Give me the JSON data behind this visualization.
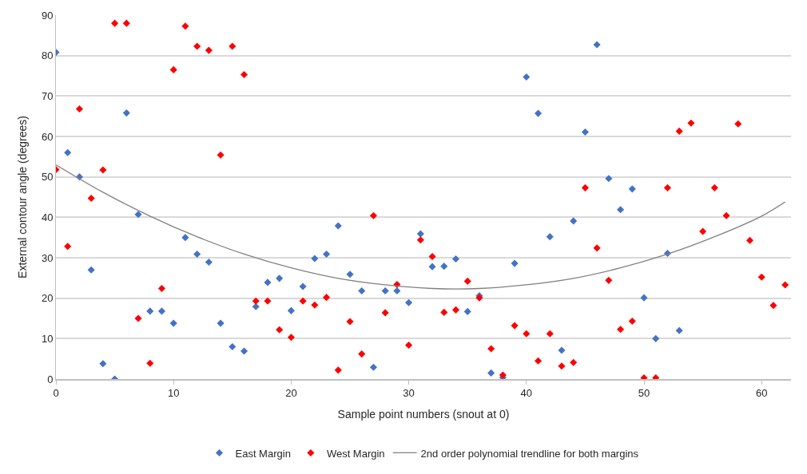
{
  "chart_data": {
    "type": "scatter",
    "xlabel": "Sample point numbers (snout at 0)",
    "ylabel": "External contour angle (degrees)",
    "xlim": [
      0,
      62.5
    ],
    "xticks": [
      0,
      10,
      20,
      30,
      40,
      50,
      60
    ],
    "ylim": [
      0,
      90
    ],
    "yticks": [
      0,
      10,
      20,
      30,
      40,
      50,
      60,
      70,
      80,
      90
    ],
    "grid": "y",
    "legend": "bottom",
    "marker": "diamond",
    "series": [
      {
        "name": "East Margin",
        "color": "#4472c4",
        "x": [
          0,
          1,
          2,
          3,
          4,
          5,
          6,
          7,
          8,
          9,
          10,
          11,
          12,
          13,
          14,
          15,
          16,
          17,
          18,
          19,
          20,
          21,
          22,
          23,
          24,
          25,
          26,
          27,
          28,
          29,
          30,
          31,
          32,
          33,
          34,
          35,
          36,
          37,
          38,
          39,
          40,
          41,
          42,
          43,
          44,
          45,
          46,
          47,
          48,
          49,
          50,
          51,
          52,
          53
        ],
        "values": [
          80.8,
          56,
          50,
          27,
          3.8,
          0,
          65.8,
          40.7,
          16.8,
          16.8,
          13.8,
          35,
          30.9,
          28.9,
          13.8,
          8,
          6.9,
          17.9,
          23.9,
          24.9,
          16.9,
          22.9,
          29.8,
          30.9,
          37.9,
          25.9,
          21.8,
          2.9,
          21.8,
          21.8,
          18.9,
          35.9,
          27.8,
          27.9,
          29.7,
          16.7,
          20.6,
          1.5,
          0.4,
          28.6,
          74.7,
          65.7,
          35.2,
          7.1,
          39.1,
          61.1,
          82.7,
          49.6,
          41.9,
          47,
          20.1,
          10,
          31.1,
          12
        ]
      },
      {
        "name": "West Margin",
        "color": "#ff0000",
        "x": [
          0,
          1,
          2,
          3,
          4,
          5,
          6,
          7,
          8,
          9,
          10,
          11,
          12,
          13,
          14,
          15,
          16,
          17,
          18,
          19,
          20,
          21,
          22,
          23,
          24,
          25,
          26,
          27,
          28,
          29,
          30,
          31,
          32,
          33,
          34,
          35,
          36,
          37,
          38,
          39,
          40,
          41,
          42,
          43,
          44,
          45,
          46,
          47,
          48,
          49,
          50,
          51,
          52,
          53,
          54,
          55,
          56,
          57,
          58,
          59,
          60,
          61,
          62
        ],
        "values": [
          51.8,
          32.8,
          66.8,
          44.7,
          51.7,
          88,
          88,
          15,
          3.9,
          22.4,
          76.5,
          87.3,
          82.3,
          81.3,
          55.4,
          82.3,
          75.3,
          19.3,
          19.3,
          12.2,
          10.3,
          19.3,
          18.3,
          20.2,
          2.2,
          14.2,
          6.2,
          40.4,
          16.4,
          23.4,
          8.4,
          34.4,
          30.3,
          16.5,
          17.1,
          24.2,
          20.1,
          7.5,
          1,
          13.2,
          11.2,
          4.5,
          11.2,
          3.2,
          4.1,
          47.3,
          32.4,
          24.4,
          12.3,
          14.3,
          0.3,
          0.3,
          47.3,
          61.3,
          63.3,
          36.5,
          47.3,
          40.4,
          63.1,
          34.3,
          25.2,
          18.2,
          23.3
        ]
      },
      {
        "name": "2nd order polynomial trendline for both margins",
        "color": "#808080",
        "type": "line",
        "marker": "none",
        "line_style": "solid",
        "x": [
          0,
          4,
          8,
          12,
          16,
          20,
          24,
          28,
          32,
          36,
          40,
          44,
          48,
          52,
          56,
          60,
          62
        ],
        "values": [
          53,
          46.2,
          40.3,
          35.2,
          30.9,
          27.5,
          24.9,
          23.3,
          22.4,
          22.4,
          23.3,
          24.9,
          27.5,
          30.9,
          35.2,
          40.3,
          43.8
        ]
      }
    ]
  }
}
